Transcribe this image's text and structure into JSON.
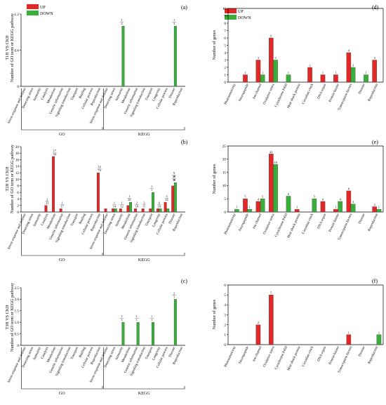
{
  "colors": {
    "up": "#e32626",
    "down": "#3aae3a",
    "axis": "#000000"
  },
  "legend": {
    "up": "UP",
    "down": "DOWN"
  },
  "chart_data": [
    {
      "id": "a",
      "type": "bar",
      "panel_label": "(a)",
      "ylabel_lines": [
        "T1H VS CKH",
        "Number of GO term or KEGG pathway"
      ],
      "ylim": [
        0,
        1.2
      ],
      "yticks": [
        "0",
        "0.6",
        "1.2"
      ],
      "categories": [
        "Stress response and defense",
        "Detecting stress",
        "Immunity",
        "Catalysis",
        "Metabolism",
        "Genetic information",
        "Signaling transduction",
        "Transport",
        "Binding",
        "Cellular process",
        "Reproduction",
        "Stress response and defense",
        "Detecting stress",
        "Immunity",
        "Metabolism",
        "Genetic information",
        "Signaling transduction",
        "Transport",
        "Longevity",
        "Cellular process",
        "Disease",
        "Reproduction"
      ],
      "groups": [
        {
          "name": "GO",
          "start": 0,
          "end": 10
        },
        {
          "name": "KEGG",
          "start": 11,
          "end": 21
        }
      ],
      "series": [
        {
          "name": "UP",
          "values": [
            0,
            0,
            0,
            0,
            0,
            0,
            0,
            0,
            0,
            0,
            0,
            0,
            0,
            0,
            0,
            0,
            0,
            0,
            0,
            0,
            0,
            0
          ]
        },
        {
          "name": "DOWN",
          "values": [
            0,
            0,
            0,
            0,
            0,
            0,
            0,
            0,
            0,
            0,
            0,
            0,
            0,
            1,
            0,
            0,
            0,
            0,
            0,
            0,
            1,
            0
          ]
        }
      ],
      "labels": [
        {
          "category": 13,
          "lines": [
            "1",
            "2"
          ]
        },
        {
          "category": 20,
          "lines": [
            "1",
            "3"
          ]
        }
      ]
    },
    {
      "id": "b",
      "type": "bar",
      "panel_label": "(b)",
      "ylabel_lines": [
        "T2H VS CKH",
        "Number of GO term or KEGG pathway"
      ],
      "ylim": [
        0,
        20
      ],
      "yticks": [
        "0",
        "2",
        "4",
        "6",
        "8",
        "10",
        "12",
        "14",
        "16",
        "18",
        "20"
      ],
      "categories": [
        "Stress response and defense",
        "Detecting stress",
        "Immunity",
        "Catalysis",
        "Metabolism",
        "Genetic information",
        "Signaling transduction",
        "Transport",
        "Binding",
        "Cellular process",
        "Reproduction",
        "Stress response and defense",
        "Detecting stress",
        "Immunity",
        "Metabolism",
        "Genetic information",
        "Signaling transduction",
        "Transport",
        "Longevity",
        "Cellular process",
        "Disease",
        "Reproduction"
      ],
      "groups": [
        {
          "name": "GO",
          "start": 0,
          "end": 10
        },
        {
          "name": "KEGG",
          "start": 11,
          "end": 21
        }
      ],
      "series": [
        {
          "name": "UP",
          "values": [
            0,
            0,
            0,
            2,
            17,
            1,
            0,
            0,
            0,
            0,
            12,
            1,
            1,
            1,
            2,
            1,
            1,
            1,
            1,
            3,
            8,
            0
          ]
        },
        {
          "name": "DOWN",
          "values": [
            0,
            0,
            0,
            0,
            0,
            0,
            0,
            0,
            0,
            0,
            0,
            0,
            1,
            0,
            3,
            0,
            0,
            6,
            1,
            1,
            9,
            0
          ]
        }
      ],
      "labels": [
        {
          "category": 3,
          "lines": [
            "2",
            "23"
          ]
        },
        {
          "category": 4,
          "lines": [
            "17",
            "54"
          ]
        },
        {
          "category": 5,
          "lines": [
            "1",
            "17"
          ]
        },
        {
          "category": 10,
          "lines": [
            "12",
            "74"
          ]
        },
        {
          "category": 12,
          "lines": [
            "1",
            "14"
          ]
        },
        {
          "category": 13,
          "lines": [
            "1",
            "12"
          ]
        },
        {
          "category": 14,
          "lines": [
            "1",
            "10"
          ]
        },
        {
          "category": 15,
          "lines": [
            "2",
            "10"
          ]
        },
        {
          "category": 16,
          "lines": [
            "3",
            "6"
          ]
        },
        {
          "category": 17,
          "lines": [
            "1",
            "1"
          ]
        },
        {
          "category": 18,
          "lines": [
            "6",
            "18"
          ]
        },
        {
          "category": 19,
          "lines": [
            "3",
            "23"
          ]
        },
        {
          "category": 20,
          "lines": [
            "2",
            "9"
          ]
        },
        {
          "category": 20,
          "lines": [
            "9",
            "28",
            "19"
          ]
        }
      ]
    },
    {
      "id": "c",
      "type": "bar",
      "panel_label": "(c)",
      "ylabel_lines": [
        "T3H VS CKH",
        "Number of GO term or KEGG pathway"
      ],
      "ylim": [
        0,
        2.5
      ],
      "yticks": [
        "0",
        "0.5",
        "1.0",
        "1.5",
        "2.0",
        "2.5"
      ],
      "categories": [
        "Stress response and defense",
        "Detecting stress",
        "Immunity",
        "Catalysis",
        "Metabolism",
        "Genetic information",
        "Signaling transduction",
        "Transport",
        "Binding",
        "Cellular process",
        "Reproduction",
        "Stress response and defense",
        "Detecting stress",
        "Immunity",
        "Metabolism",
        "Genetic information",
        "Signaling transduction",
        "Transport",
        "Longevity",
        "Cellular process",
        "Disease",
        "Reproduction"
      ],
      "groups": [
        {
          "name": "GO",
          "start": 0,
          "end": 10
        },
        {
          "name": "KEGG",
          "start": 11,
          "end": 21
        }
      ],
      "series": [
        {
          "name": "UP",
          "values": [
            0,
            0,
            0,
            0,
            0,
            0,
            0,
            0,
            0,
            0,
            0,
            0,
            0,
            0,
            0,
            0,
            0,
            0,
            0,
            0,
            0,
            0
          ]
        },
        {
          "name": "DOWN",
          "values": [
            0,
            0,
            0,
            0,
            0,
            0,
            0,
            0,
            0,
            0,
            0,
            0,
            0,
            1,
            0,
            1,
            0,
            1,
            0,
            0,
            2,
            0
          ]
        }
      ],
      "labels": [
        {
          "category": 13,
          "lines": [
            "1",
            "1"
          ]
        },
        {
          "category": 15,
          "lines": [
            "1",
            "1"
          ]
        },
        {
          "category": 17,
          "lines": [
            "1",
            "1"
          ]
        },
        {
          "category": 20,
          "lines": [
            "2",
            "1"
          ]
        }
      ]
    },
    {
      "id": "d",
      "type": "bar",
      "panel_label": "(d)",
      "ylabel_lines": [
        "Number of genes"
      ],
      "ylim": [
        0,
        10
      ],
      "yticks": [
        "0",
        "1",
        "2",
        "3",
        "4",
        "5",
        "6",
        "7",
        "8",
        "9",
        "10"
      ],
      "categories": [
        "Photosensitivity",
        "Neuropeptide",
        "Ion channel",
        "Oxidative stress",
        "Cytochrome P450",
        "Heat shock protein",
        "Circadian clock",
        "DNA repair",
        "Protein kinase",
        "Transcription factors",
        "Disease",
        "Reproduction"
      ],
      "series": [
        {
          "name": "UP",
          "values": [
            0,
            1,
            3,
            6,
            0,
            0,
            2,
            1,
            1,
            4,
            0,
            3
          ]
        },
        {
          "name": "DOWN",
          "values": [
            0,
            0,
            1,
            3,
            1,
            0,
            0,
            0,
            0,
            2,
            1,
            0
          ]
        }
      ],
      "labels": [
        {
          "category": 1,
          "series": 0,
          "text": "1"
        },
        {
          "category": 2,
          "series": 0,
          "text": "3"
        },
        {
          "category": 2,
          "series": 1,
          "text": "1"
        },
        {
          "category": 3,
          "series": 0,
          "text": "6"
        },
        {
          "category": 3,
          "series": 1,
          "text": "3"
        },
        {
          "category": 4,
          "series": 1,
          "text": "1"
        },
        {
          "category": 6,
          "series": 0,
          "text": "2"
        },
        {
          "category": 7,
          "series": 0,
          "text": "1"
        },
        {
          "category": 8,
          "series": 0,
          "text": "1"
        },
        {
          "category": 9,
          "series": 0,
          "text": "4"
        },
        {
          "category": 9,
          "series": 1,
          "text": "2"
        },
        {
          "category": 10,
          "series": 1,
          "text": "1"
        },
        {
          "category": 11,
          "series": 0,
          "text": "3"
        }
      ]
    },
    {
      "id": "e",
      "type": "bar",
      "panel_label": "(e)",
      "ylabel_lines": [
        "Number of genes"
      ],
      "ylim": [
        0,
        25
      ],
      "yticks": [
        "0",
        "5",
        "10",
        "15",
        "20",
        "25"
      ],
      "categories": [
        "Photosensitivity",
        "Neuropeptide",
        "Ion channel",
        "Oxidative stress",
        "Cytochrome P450",
        "Heat shock protein",
        "Circadian clock",
        "DNA repair",
        "Protein kinase",
        "Transcription factors",
        "Disease",
        "Reproduction"
      ],
      "series": [
        {
          "name": "UP",
          "values": [
            0,
            5,
            4,
            22,
            0,
            1,
            0,
            4,
            1,
            8,
            0,
            2
          ]
        },
        {
          "name": "DOWN",
          "values": [
            1,
            1,
            5,
            18,
            6,
            0,
            5,
            0,
            4,
            3,
            0,
            1
          ]
        }
      ],
      "labels": [
        {
          "category": 0,
          "series": 1,
          "text": "1"
        },
        {
          "category": 1,
          "series": 0,
          "text": "5"
        },
        {
          "category": 1,
          "series": 1,
          "text": "1"
        },
        {
          "category": 2,
          "series": 0,
          "text": "4"
        },
        {
          "category": 2,
          "series": 1,
          "text": "5"
        },
        {
          "category": 3,
          "series": 0,
          "text": "22"
        },
        {
          "category": 3,
          "series": 1,
          "text": "18"
        },
        {
          "category": 4,
          "series": 1,
          "text": "6"
        },
        {
          "category": 5,
          "series": 0,
          "text": "1"
        },
        {
          "category": 6,
          "series": 1,
          "text": "5"
        },
        {
          "category": 7,
          "series": 0,
          "text": "4"
        },
        {
          "category": 8,
          "series": 0,
          "text": "1"
        },
        {
          "category": 8,
          "series": 1,
          "text": "4"
        },
        {
          "category": 9,
          "series": 0,
          "text": "8"
        },
        {
          "category": 9,
          "series": 1,
          "text": "3"
        },
        {
          "category": 11,
          "series": 0,
          "text": "2"
        },
        {
          "category": 11,
          "series": 1,
          "text": "1"
        }
      ]
    },
    {
      "id": "f",
      "type": "bar",
      "panel_label": "(f)",
      "ylabel_lines": [
        "Number of genes"
      ],
      "ylim": [
        0,
        6
      ],
      "yticks": [
        "0",
        "1",
        "2",
        "3",
        "4",
        "5",
        "6"
      ],
      "categories": [
        "Photosensitivity",
        "Neuropeptide",
        "Ion channel",
        "Oxidative stress",
        "Cytochrome P450",
        "Heat shock protein",
        "Circadian clock",
        "DNA repair",
        "Protein kinase",
        "Transcription factors",
        "Disease",
        "Reproduction"
      ],
      "series": [
        {
          "name": "UP",
          "values": [
            0,
            0,
            2,
            5,
            0,
            0,
            0,
            0,
            0,
            1,
            0,
            0
          ]
        },
        {
          "name": "DOWN",
          "values": [
            0,
            0,
            0,
            0,
            0,
            0,
            0,
            0,
            0,
            0,
            0,
            1
          ]
        }
      ],
      "labels": [
        {
          "category": 2,
          "series": 0,
          "text": "2"
        },
        {
          "category": 3,
          "series": 0,
          "text": "5"
        },
        {
          "category": 9,
          "series": 0,
          "text": "1"
        },
        {
          "category": 11,
          "series": 1,
          "text": "1"
        }
      ]
    }
  ]
}
